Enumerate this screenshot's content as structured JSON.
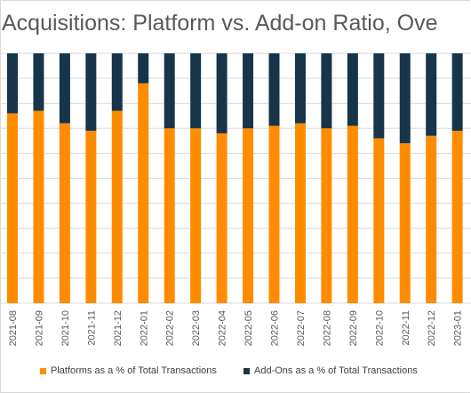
{
  "chart_data": {
    "type": "bar",
    "stacked": true,
    "title": "Acquisitions: Platform vs. Add-on Ratio, Ove",
    "categories": [
      "2021-08",
      "2021-09",
      "2021-10",
      "2021-11",
      "2021-12",
      "2022-01",
      "2022-02",
      "2022-03",
      "2022-04",
      "2022-05",
      "2022-06",
      "2022-07",
      "2022-08",
      "2022-09",
      "2022-10",
      "2022-11",
      "2022-12",
      "2023-01"
    ],
    "series": [
      {
        "name": "Platforms as a % of Total Transactions",
        "color": "#ff8c00",
        "values": [
          76,
          77,
          72,
          69,
          77,
          88,
          70,
          70,
          68,
          70,
          71,
          72,
          70,
          71,
          66,
          64,
          67,
          69
        ]
      },
      {
        "name": "Add-Ons as a % of Total Transactions",
        "color": "#17354a",
        "values": [
          24,
          23,
          28,
          31,
          23,
          12,
          30,
          30,
          32,
          30,
          29,
          28,
          30,
          29,
          34,
          36,
          33,
          31
        ]
      }
    ],
    "ylim": [
      0,
      100
    ],
    "grid": true,
    "legend": "bottom"
  }
}
